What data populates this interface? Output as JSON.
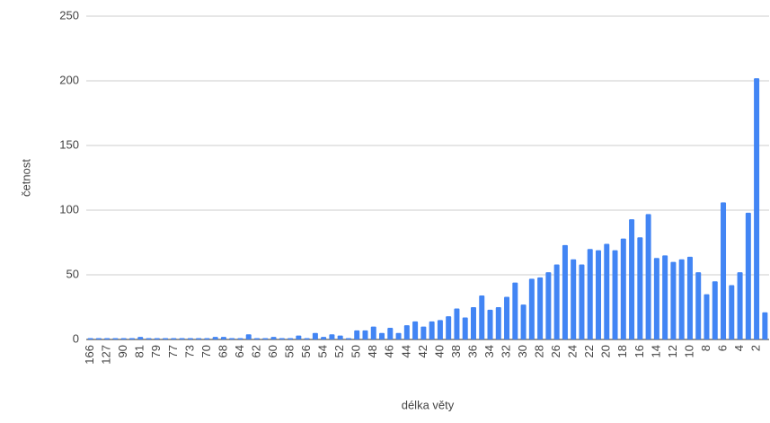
{
  "chart_data": {
    "type": "bar",
    "x_label": "délka věty",
    "y_label": "četnost",
    "categories": [
      "166",
      null,
      "127",
      null,
      "90",
      null,
      "81",
      null,
      "79",
      null,
      "77",
      null,
      "73",
      null,
      "70",
      null,
      "68",
      null,
      "64",
      null,
      "62",
      null,
      "60",
      null,
      "58",
      null,
      "56",
      null,
      "54",
      null,
      "52",
      null,
      "50",
      null,
      "48",
      null,
      "46",
      null,
      "44",
      null,
      "42",
      null,
      "40",
      null,
      "38",
      null,
      "36",
      null,
      "34",
      null,
      "32",
      null,
      "30",
      null,
      "28",
      null,
      "26",
      null,
      "24",
      null,
      "22",
      null,
      "20",
      null,
      "18",
      null,
      "16",
      null,
      "14",
      null,
      "12",
      null,
      "10",
      null,
      "8",
      null,
      "6",
      null,
      "4",
      null,
      "2",
      null
    ],
    "values": [
      1,
      1,
      1,
      1,
      1,
      1,
      2,
      1,
      1,
      1,
      1,
      1,
      1,
      1,
      1,
      2,
      2,
      1,
      1,
      4,
      1,
      1,
      2,
      1,
      1,
      3,
      1,
      5,
      2,
      4,
      3,
      1,
      7,
      7,
      10,
      5,
      9,
      5,
      11,
      14,
      10,
      14,
      15,
      18,
      24,
      17,
      25,
      34,
      23,
      25,
      33,
      44,
      27,
      47,
      48,
      52,
      58,
      73,
      62,
      58,
      70,
      69,
      74,
      69,
      78,
      93,
      79,
      97,
      63,
      65,
      60,
      62,
      64,
      52,
      35,
      45,
      106,
      42,
      52,
      98,
      202,
      21
    ],
    "color": "#4285f4",
    "ylim": [
      0,
      250
    ],
    "yticks": [
      0,
      50,
      100,
      150,
      200,
      250
    ],
    "grid": true
  }
}
